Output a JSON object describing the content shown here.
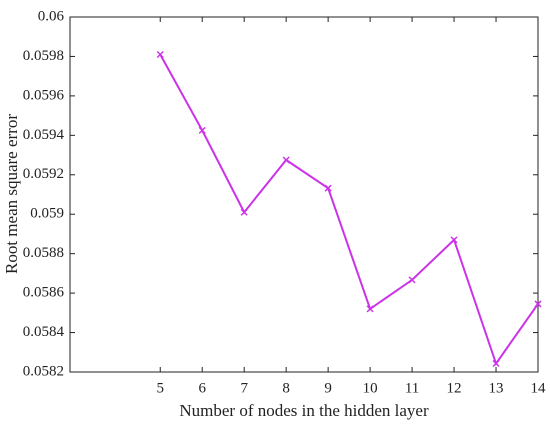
{
  "chart_data": {
    "type": "line",
    "x_label": "Number of nodes in the hidden layer",
    "y_label": "Root mean square error",
    "x": [
      5,
      6,
      7,
      8,
      9,
      10,
      11,
      12,
      13,
      14
    ],
    "series": [
      {
        "color": "#cc33e8",
        "values": [
          0.05981,
          0.059425,
          0.05901,
          0.059275,
          0.059132,
          0.05852,
          0.058667,
          0.05887,
          0.058243,
          0.058545
        ]
      }
    ],
    "xlim": [
      2.85,
      14
    ],
    "xticks": [
      5,
      6,
      7,
      8,
      9,
      10,
      11,
      12,
      13,
      14
    ],
    "ylim": [
      0.0582,
      0.06
    ],
    "yticks": [
      0.0582,
      0.0584,
      0.0586,
      0.0588,
      0.059,
      0.0592,
      0.0594,
      0.0596,
      0.0598,
      0.06
    ],
    "grid": false
  }
}
